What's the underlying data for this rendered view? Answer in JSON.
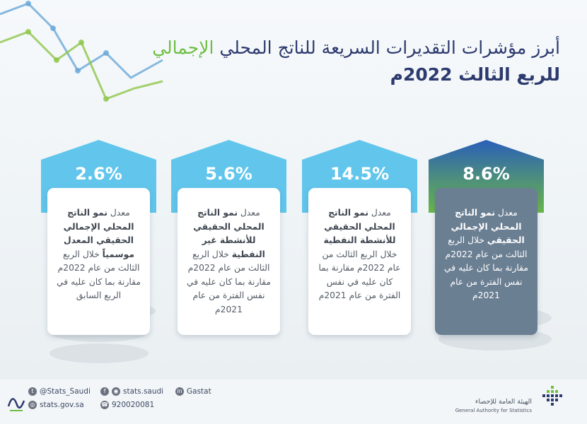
{
  "title": {
    "line1_part_blue": "أبرز مؤشرات التقديرات السريعة للناتج المحلي",
    "line1_part_green": "الإجمالي",
    "line2": "للربع الثالث 2022م"
  },
  "cards": [
    {
      "value": "8.6%",
      "text_pre": "معدل",
      "text_bold": "نمو الناتج المحلي الإجمالي الحقيقي",
      "text_post": "خلال الربع الثالث من عام 2022م مقارنة بما كان عليه في نفس الفترة من عام 2021م"
    },
    {
      "value": "14.5%",
      "text_pre": "معدل",
      "text_bold": "نمو الناتج المحلي الحقيقي للأنشطة النفطية",
      "text_post": "خلال الربع الثالث من عام 2022م مقارنة بما كان عليه في نفس الفترة من عام 2021م"
    },
    {
      "value": "5.6%",
      "text_pre": "معدل",
      "text_bold": "نمو الناتج المحلي الحقيقي للأنشطة غير النفطية",
      "text_post": "خلال الربع الثالث من عام 2022م مقارنة بما كان عليه في نفس الفترة من عام 2021م"
    },
    {
      "value": "2.6%",
      "text_pre": "معدل",
      "text_bold": "نمو الناتج المحلي الإجمالي الحقيقي المعدل موسمياً",
      "text_post": "خلال الربع الثالث من عام 2022م مقارنة بما كان عليه في الربع السابق"
    }
  ],
  "footer": {
    "twitter": "@Stats_Saudi",
    "website": "stats.gov.sa",
    "social": "stats.saudi",
    "phone": "920020081",
    "linkedin": "Gastat",
    "org_ar": "الهيئة العامة للإحصاء",
    "org_en": "General Authority for Statistics"
  },
  "colors": {
    "title_blue": "#2d3a6e",
    "title_green": "#6fbe44",
    "card_light": "#62c6ec",
    "card_dark_top": "#2a5fb8",
    "card_dark_bottom": "#6ab84a",
    "card_dark_box": "#6b7f93"
  }
}
